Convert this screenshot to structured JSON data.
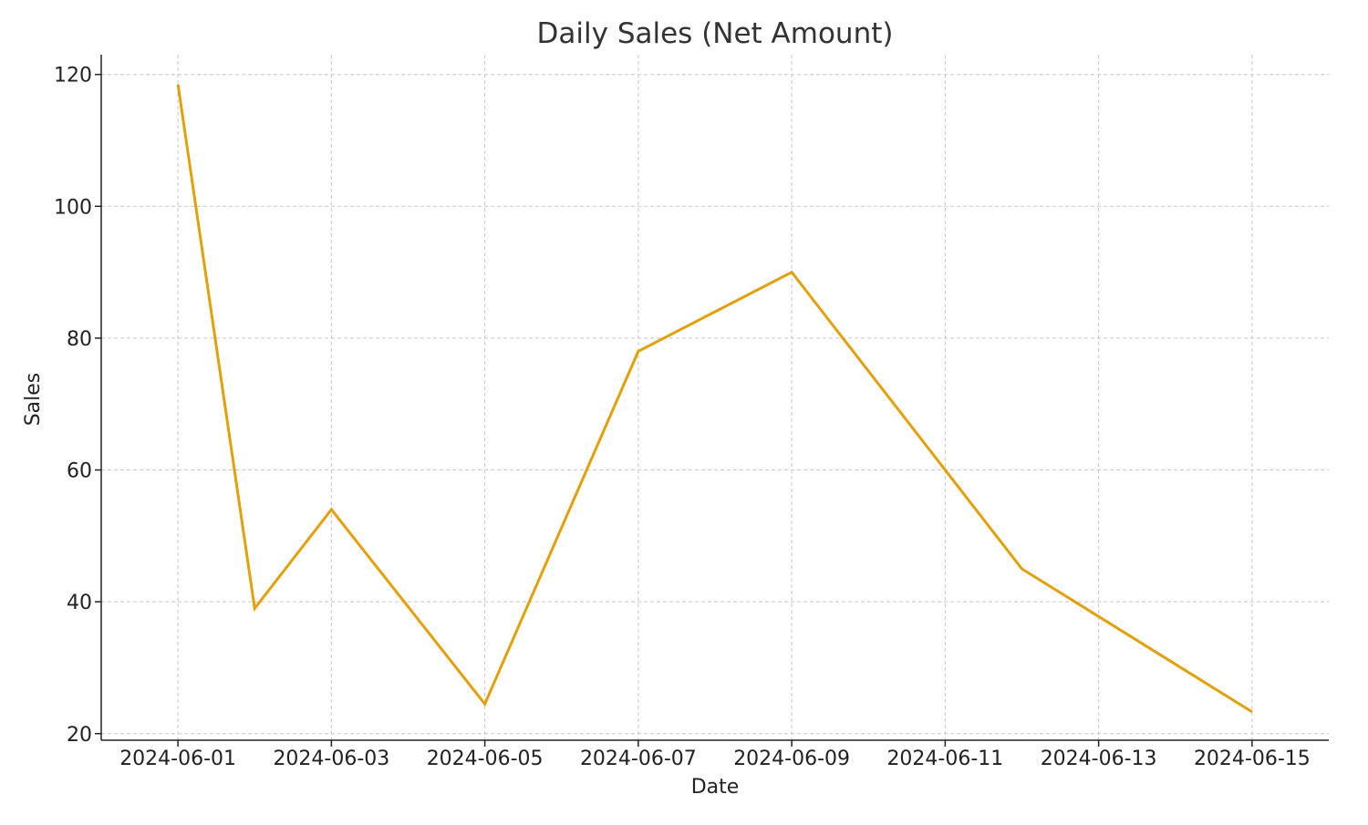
{
  "chart_data": {
    "type": "line",
    "title": "Daily Sales (Net Amount)",
    "xlabel": "Date",
    "ylabel": "Sales",
    "x_type": "date",
    "xlim": [
      "2024-05-31",
      "2024-06-16"
    ],
    "ylim": [
      19,
      123
    ],
    "grid": true,
    "legend": "none",
    "x_ticks": [
      "2024-06-01",
      "2024-06-03",
      "2024-06-05",
      "2024-06-07",
      "2024-06-09",
      "2024-06-11",
      "2024-06-13",
      "2024-06-15"
    ],
    "y_ticks": [
      20,
      40,
      60,
      80,
      100,
      120
    ],
    "series": [
      {
        "color": "#E3A008",
        "points": [
          {
            "x": "2024-06-01",
            "y": 118.5
          },
          {
            "x": "2024-06-02",
            "y": 39.0
          },
          {
            "x": "2024-06-03",
            "y": 54.0
          },
          {
            "x": "2024-06-05",
            "y": 24.5
          },
          {
            "x": "2024-06-07",
            "y": 78.0
          },
          {
            "x": "2024-06-09",
            "y": 90.0
          },
          {
            "x": "2024-06-11",
            "y": 60.0
          },
          {
            "x": "2024-06-12",
            "y": 45.0
          },
          {
            "x": "2024-06-15",
            "y": 23.3
          }
        ]
      }
    ]
  }
}
